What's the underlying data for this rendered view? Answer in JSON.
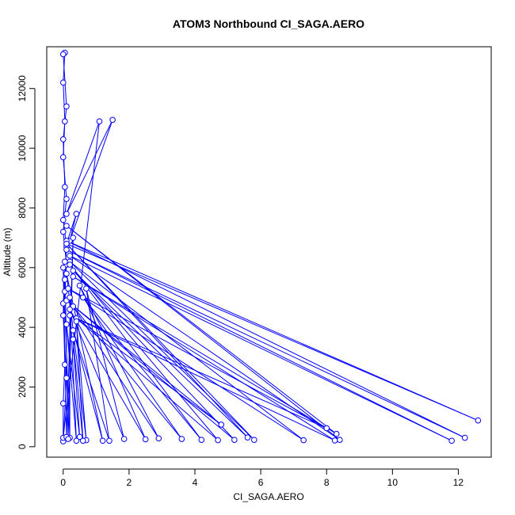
{
  "chart_data": {
    "type": "line",
    "title": "ATOM3 Northbound CI_SAGA.AERO",
    "xlabel": "CI_SAGA.AERO",
    "ylabel": "Altitude (m)",
    "xlim": [
      -0.5,
      13.0
    ],
    "ylim": [
      -350,
      13400
    ],
    "xticks": [
      0,
      2,
      4,
      6,
      8,
      10,
      12
    ],
    "yticks": [
      0,
      2000,
      4000,
      6000,
      8000,
      10000,
      12000
    ],
    "grid": false,
    "line_color": "#0000ff",
    "series": [
      {
        "values": [
          [
            0.0,
            180
          ],
          [
            0.1,
            2300
          ],
          [
            0.0,
            4400
          ],
          [
            0.05,
            5200
          ],
          [
            0.1,
            6100
          ],
          [
            0.0,
            7200
          ],
          [
            0.1,
            8300
          ],
          [
            0.0,
            9700
          ],
          [
            0.05,
            10900
          ],
          [
            0.0,
            12200
          ],
          [
            0.05,
            13200
          ],
          [
            0.0,
            13150
          ],
          [
            0.1,
            11400
          ],
          [
            0.0,
            10300
          ],
          [
            0.05,
            8700
          ],
          [
            0.0,
            7600
          ],
          [
            0.1,
            6700
          ],
          [
            0.05,
            5600
          ],
          [
            0.0,
            4800
          ],
          [
            0.05,
            2750
          ],
          [
            0.0,
            1450
          ],
          [
            0.0,
            300
          ],
          [
            1.1,
            10900
          ],
          [
            0.1,
            7800
          ],
          [
            1.5,
            10950
          ],
          [
            0.2,
            6900
          ],
          [
            0.4,
            7800
          ],
          [
            0.1,
            6800
          ],
          [
            12.6,
            880
          ],
          [
            0.1,
            6900
          ],
          [
            12.2,
            300
          ],
          [
            0.1,
            6600
          ],
          [
            11.8,
            200
          ],
          [
            0.2,
            6400
          ],
          [
            8.4,
            230
          ],
          [
            0.1,
            7400
          ],
          [
            8.3,
            430
          ],
          [
            0.3,
            5700
          ],
          [
            8.25,
            210
          ],
          [
            0.2,
            4400
          ],
          [
            8.0,
            620
          ],
          [
            0.15,
            5300
          ],
          [
            7.3,
            220
          ],
          [
            0.2,
            6200
          ],
          [
            5.8,
            230
          ],
          [
            0.1,
            6800
          ],
          [
            5.6,
            310
          ],
          [
            0.3,
            5900
          ],
          [
            5.2,
            230
          ],
          [
            0.1,
            4900
          ],
          [
            4.8,
            740
          ],
          [
            0.4,
            4300
          ],
          [
            4.7,
            220
          ],
          [
            0.2,
            6100
          ],
          [
            4.2,
            230
          ],
          [
            0.6,
            5000
          ],
          [
            3.6,
            260
          ],
          [
            0.3,
            4700
          ],
          [
            2.9,
            280
          ],
          [
            0.5,
            5400
          ],
          [
            2.5,
            250
          ],
          [
            0.2,
            4600
          ],
          [
            1.85,
            260
          ],
          [
            0.7,
            5300
          ],
          [
            1.4,
            200
          ],
          [
            0.3,
            3900
          ],
          [
            1.2,
            200
          ],
          [
            0.1,
            5800
          ],
          [
            0.7,
            220
          ],
          [
            0.4,
            4200
          ],
          [
            0.6,
            200
          ],
          [
            0.3,
            3600
          ],
          [
            0.5,
            330
          ],
          [
            0.1,
            4100
          ],
          [
            0.4,
            200
          ],
          [
            0.2,
            5000
          ],
          [
            0.2,
            300
          ],
          [
            0.0,
            6000
          ],
          [
            0.1,
            330
          ],
          [
            0.3,
            7000
          ],
          [
            0.15,
            260
          ],
          [
            0.05,
            6200
          ]
        ]
      }
    ]
  }
}
